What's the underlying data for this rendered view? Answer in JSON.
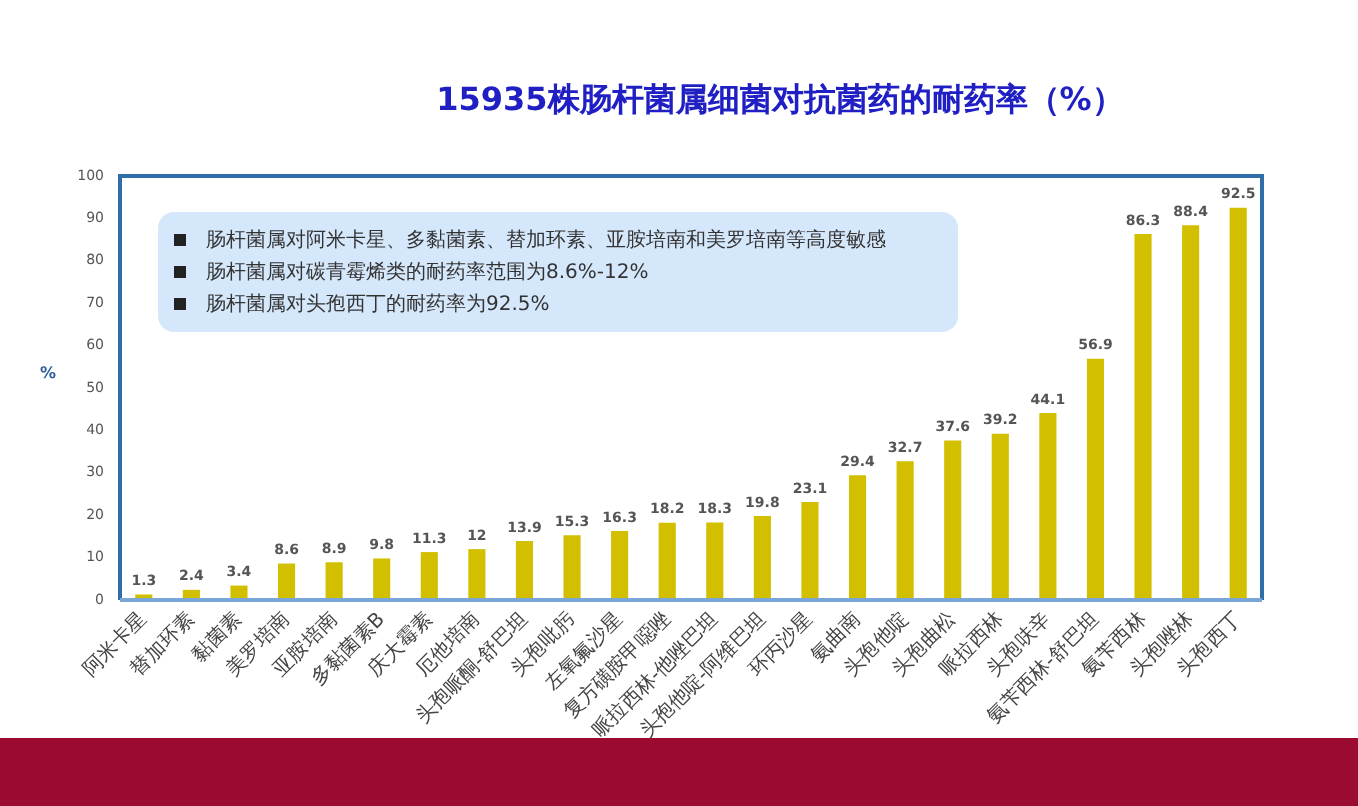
{
  "chart_data": {
    "type": "bar",
    "title": "15935株肠杆菌属细菌对抗菌药的耐药率（%）",
    "ylabel": "%",
    "categories": [
      "阿米卡星",
      "替加环素",
      "黏菌素",
      "美罗培南",
      "亚胺培南",
      "多黏菌素B",
      "庆大霉素",
      "厄他培南",
      "头孢哌酮-舒巴坦",
      "头孢吡肟",
      "左氧氟沙星",
      "复方磺胺甲噁唑",
      "哌拉西林-他唑巴坦",
      "头孢他啶-阿维巴坦",
      "环丙沙星",
      "氨曲南",
      "头孢他啶",
      "头孢曲松",
      "哌拉西林",
      "头孢呋辛",
      "氨苄西林-舒巴坦",
      "氨苄西林",
      "头孢唑林",
      "头孢西丁"
    ],
    "values": [
      1.3,
      2.4,
      3.4,
      8.6,
      8.9,
      9.8,
      11.3,
      12,
      13.9,
      15.3,
      16.3,
      18.2,
      18.3,
      19.8,
      23.1,
      29.4,
      32.7,
      37.6,
      39.2,
      44.1,
      56.9,
      86.3,
      88.4,
      92.5
    ],
    "color": "#d2c000",
    "ylim": [
      0,
      100
    ],
    "yticks": [
      0,
      10,
      20,
      30,
      40,
      50,
      60,
      70,
      80,
      90,
      100
    ],
    "data_labels": true,
    "annotations": [
      "肠杆菌属对阿米卡星、多黏菌素、替加环素、亚胺培南和美罗培南等高度敏感",
      "肠杆菌属对碳青霉烯类的耐药率范围为8.6%-12%",
      "肠杆菌属对头孢西丁的耐药率为92.5%"
    ]
  }
}
